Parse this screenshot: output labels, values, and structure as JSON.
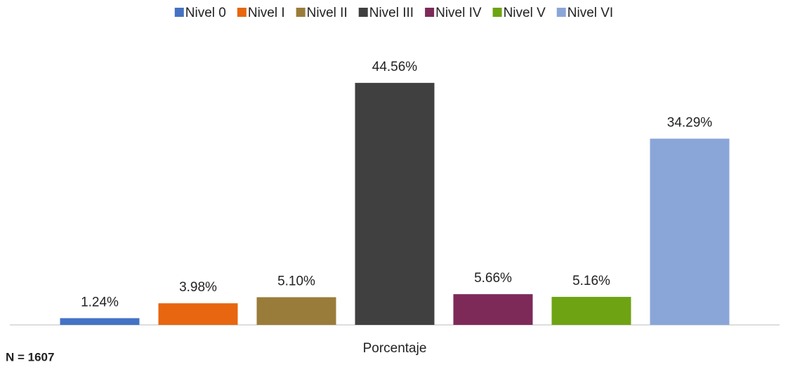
{
  "chart_data": {
    "type": "bar",
    "categories": [
      "Porcentaje"
    ],
    "series": [
      {
        "name": "Nivel 0",
        "color": "#4472c4",
        "values": [
          1.24
        ],
        "value_labels": [
          "1.24%"
        ]
      },
      {
        "name": "Nivel I",
        "color": "#e8660f",
        "values": [
          3.98
        ],
        "value_labels": [
          "3.98%"
        ]
      },
      {
        "name": "Nivel II",
        "color": "#9a7c3a",
        "values": [
          5.1
        ],
        "value_labels": [
          "5.10%"
        ]
      },
      {
        "name": "Nivel III",
        "color": "#404040",
        "values": [
          44.56
        ],
        "value_labels": [
          "44.56%"
        ]
      },
      {
        "name": "Nivel IV",
        "color": "#7e2a59",
        "values": [
          5.66
        ],
        "value_labels": [
          "5.66%"
        ]
      },
      {
        "name": "Nivel V",
        "color": "#6ea313",
        "values": [
          5.16
        ],
        "value_labels": [
          "5.16%"
        ]
      },
      {
        "name": "Nivel VI",
        "color": "#8aa6d8",
        "values": [
          34.29
        ],
        "value_labels": [
          "34.29%"
        ]
      }
    ],
    "ylim": [
      0,
      50
    ],
    "legend": "top",
    "annotation": "N = 1607"
  }
}
